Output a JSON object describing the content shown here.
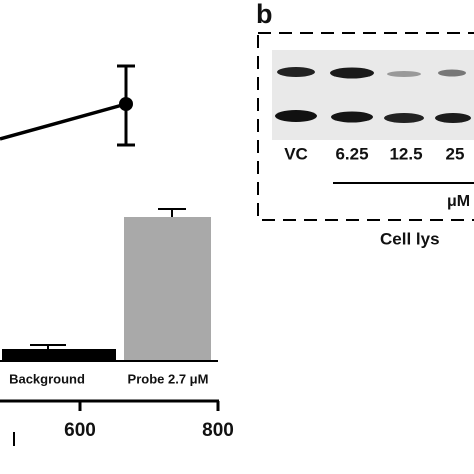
{
  "panel_a": {
    "bar_labels": [
      "Background",
      "Probe 2.7 μM"
    ],
    "x_tick_labels": [
      "600",
      "800"
    ]
  },
  "panel_b": {
    "label": "b",
    "lane_labels": [
      "VC",
      "6.25",
      "12.5",
      "25"
    ],
    "unit": "μM",
    "caption": "Cell lys"
  }
}
